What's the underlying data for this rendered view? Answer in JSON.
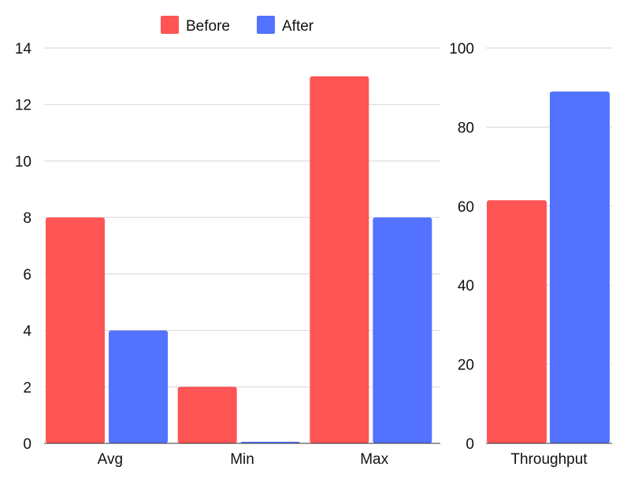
{
  "legend": [
    {
      "name": "Before",
      "color": "#ff5555"
    },
    {
      "name": "After",
      "color": "#5272ff"
    }
  ],
  "chart_data": [
    {
      "type": "bar",
      "categories": [
        "Avg",
        "Min",
        "Max"
      ],
      "series": [
        {
          "name": "Before",
          "values": [
            8,
            2,
            13
          ],
          "color": "#ff5555"
        },
        {
          "name": "After",
          "values": [
            4,
            0,
            8
          ],
          "color": "#5272ff"
        }
      ],
      "ylim": [
        0,
        14
      ],
      "yticks": [
        "0",
        "2",
        "4",
        "6",
        "8",
        "10",
        "12",
        "14"
      ],
      "grid": true,
      "legend_position": "top-center"
    },
    {
      "type": "bar",
      "categories": [
        "Throughput"
      ],
      "series": [
        {
          "name": "Before",
          "values": [
            61.5
          ],
          "color": "#ff5555"
        },
        {
          "name": "After",
          "values": [
            89
          ],
          "color": "#5272ff"
        }
      ],
      "ylim": [
        0,
        100
      ],
      "yticks": [
        "0",
        "20",
        "40",
        "60",
        "80",
        "100"
      ],
      "grid": true
    }
  ]
}
